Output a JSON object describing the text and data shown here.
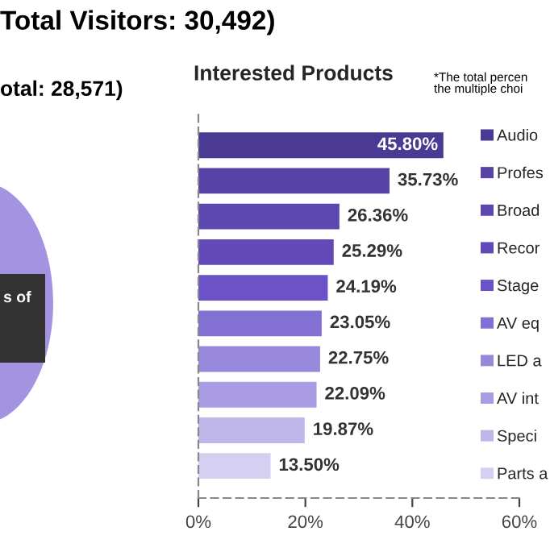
{
  "chart_data": {
    "type": "bar",
    "orientation": "horizontal",
    "title": "Interested Products",
    "annotations": [
      "Total Visitors: 30,492)",
      "otal: 28,571)",
      "*The total percen\nthe multiple choi",
      "s of"
    ],
    "categories": [
      null,
      null,
      null,
      null,
      null,
      null,
      null,
      null,
      null,
      null
    ],
    "series": [
      {
        "name": "Audio",
        "color": "#4a3a94",
        "values": [
          45.8,
          null,
          null,
          null,
          null,
          null,
          null,
          null,
          null,
          null
        ],
        "value_labels": [
          "45.80%",
          null,
          null,
          null,
          null,
          null,
          null,
          null,
          null,
          null
        ]
      },
      {
        "name": "Profes",
        "color": "#5844a6",
        "values": [
          null,
          35.73,
          null,
          null,
          null,
          null,
          null,
          null,
          null,
          null
        ],
        "value_labels": [
          null,
          "35.73%",
          null,
          null,
          null,
          null,
          null,
          null,
          null,
          null
        ]
      },
      {
        "name": "Broad",
        "color": "#5d48b0",
        "values": [
          null,
          null,
          26.36,
          null,
          null,
          null,
          null,
          null,
          null,
          null
        ],
        "value_labels": [
          null,
          null,
          "26.36%",
          null,
          null,
          null,
          null,
          null,
          null,
          null
        ]
      },
      {
        "name": "Recor",
        "color": "#6349b8",
        "values": [
          null,
          null,
          null,
          25.29,
          null,
          null,
          null,
          null,
          null,
          null
        ],
        "value_labels": [
          null,
          null,
          null,
          "25.29%",
          null,
          null,
          null,
          null,
          null,
          null
        ]
      },
      {
        "name": "Stage",
        "color": "#6b52c7",
        "values": [
          null,
          null,
          null,
          null,
          24.19,
          null,
          null,
          null,
          null,
          null
        ],
        "value_labels": [
          null,
          null,
          null,
          null,
          "24.19%",
          null,
          null,
          null,
          null,
          null
        ]
      },
      {
        "name": "AV eq",
        "color": "#8270d3",
        "values": [
          null,
          null,
          null,
          null,
          null,
          23.05,
          null,
          null,
          null,
          null
        ],
        "value_labels": [
          null,
          null,
          null,
          null,
          null,
          "23.05%",
          null,
          null,
          null,
          null
        ]
      },
      {
        "name": "LED a",
        "color": "#9888dc",
        "values": [
          null,
          null,
          null,
          null,
          null,
          null,
          22.75,
          null,
          null,
          null
        ],
        "value_labels": [
          null,
          null,
          null,
          null,
          null,
          null,
          "22.75%",
          null,
          null,
          null
        ]
      },
      {
        "name": "AV int",
        "color": "#a99ce2",
        "values": [
          null,
          null,
          null,
          null,
          null,
          null,
          null,
          22.09,
          null,
          null
        ],
        "value_labels": [
          null,
          null,
          null,
          null,
          null,
          null,
          null,
          "22.09%",
          null,
          null
        ]
      },
      {
        "name": "Speci",
        "color": "#bfb6ea",
        "values": [
          null,
          null,
          null,
          null,
          null,
          null,
          null,
          null,
          19.87,
          null
        ],
        "value_labels": [
          null,
          null,
          null,
          null,
          null,
          null,
          null,
          null,
          "19.87%",
          null
        ]
      },
      {
        "name": "Parts a",
        "color": "#d5cff2",
        "values": [
          null,
          null,
          null,
          null,
          null,
          null,
          null,
          null,
          null,
          13.5
        ],
        "value_labels": [
          null,
          null,
          null,
          null,
          null,
          null,
          null,
          null,
          null,
          "13.50%"
        ]
      }
    ],
    "xlim": [
      0,
      60
    ],
    "xticks": [
      {
        "value": 0,
        "label": "0%"
      },
      {
        "value": 20,
        "label": "20%"
      },
      {
        "value": 40,
        "label": "40%"
      },
      {
        "value": 60,
        "label": "60%"
      }
    ],
    "legend": "right"
  }
}
